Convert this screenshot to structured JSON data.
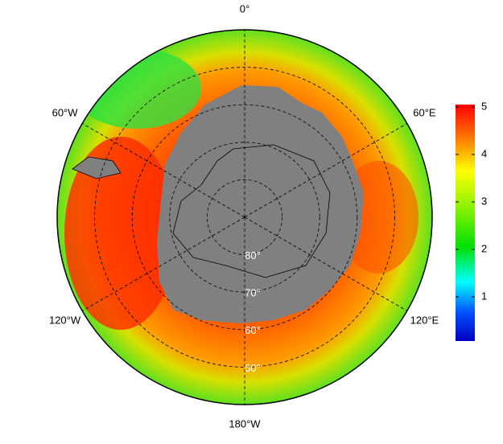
{
  "map": {
    "lon_ticks": [
      {
        "value": 0,
        "label": "0°"
      },
      {
        "value": 60,
        "label": "60°E"
      },
      {
        "value": 120,
        "label": "120°E"
      },
      {
        "value": 180,
        "label": "180°W"
      },
      {
        "value": -120,
        "label": "120°W"
      },
      {
        "value": -60,
        "label": "60°W"
      }
    ],
    "lat_ticks": [
      {
        "value": 80,
        "label": "80°"
      },
      {
        "value": 70,
        "label": "70°"
      },
      {
        "value": 60,
        "label": "60°"
      },
      {
        "value": 50,
        "label": "50°"
      }
    ],
    "lat_lim": [
      40,
      90
    ]
  },
  "colorbar": {
    "lim": [
      0.07,
      5.05
    ],
    "ticks": [
      1,
      2,
      3,
      4,
      5
    ]
  }
}
